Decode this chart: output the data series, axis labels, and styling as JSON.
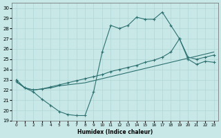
{
  "xlabel": "Humidex (Indice chaleur)",
  "bg_color": "#c8e8e8",
  "grid_color": "#b0d4d4",
  "line_color": "#2d7070",
  "xlim": [
    -0.5,
    23.5
  ],
  "ylim": [
    19,
    30.5
  ],
  "xticks": [
    0,
    1,
    2,
    3,
    4,
    5,
    6,
    7,
    8,
    9,
    10,
    11,
    12,
    13,
    14,
    15,
    16,
    17,
    18,
    19,
    20,
    21,
    22,
    23
  ],
  "yticks": [
    19,
    20,
    21,
    22,
    23,
    24,
    25,
    26,
    27,
    28,
    29,
    30
  ],
  "line1_x": [
    0,
    1,
    2,
    3,
    4,
    5,
    6,
    7,
    8,
    9,
    10,
    11,
    12,
    13,
    14,
    15,
    16,
    17,
    18,
    19,
    20,
    21,
    22,
    23
  ],
  "line1_y": [
    23.0,
    22.2,
    21.8,
    21.1,
    20.5,
    19.9,
    19.6,
    19.5,
    19.5,
    21.8,
    25.7,
    28.3,
    28.0,
    28.3,
    29.1,
    28.9,
    28.9,
    29.6,
    28.3,
    27.0,
    25.0,
    24.5,
    24.8,
    24.7
  ],
  "line2_x": [
    0,
    1,
    2,
    3,
    4,
    5,
    6,
    7,
    8,
    9,
    10,
    11,
    12,
    13,
    14,
    15,
    16,
    17,
    18,
    19,
    20,
    21,
    22,
    23
  ],
  "line2_y": [
    22.8,
    22.2,
    22.0,
    22.1,
    22.2,
    22.4,
    22.5,
    22.6,
    22.7,
    22.9,
    23.1,
    23.3,
    23.5,
    23.7,
    23.9,
    24.1,
    24.3,
    24.5,
    24.7,
    24.9,
    25.1,
    25.3,
    25.5,
    25.7
  ],
  "line3_x": [
    0,
    1,
    2,
    3,
    4,
    5,
    6,
    7,
    8,
    9,
    10,
    11,
    12,
    13,
    14,
    15,
    16,
    17,
    18,
    19,
    20,
    21,
    22,
    23
  ],
  "line3_y": [
    22.8,
    22.2,
    22.0,
    22.1,
    22.3,
    22.5,
    22.7,
    22.9,
    23.1,
    23.3,
    23.5,
    23.8,
    24.0,
    24.2,
    24.4,
    24.7,
    24.9,
    25.2,
    25.7,
    27.0,
    25.2,
    25.0,
    25.2,
    25.4
  ]
}
